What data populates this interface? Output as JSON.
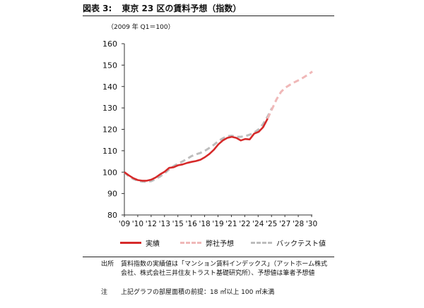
{
  "figure": {
    "number_label": "図表 3:",
    "title_text": "東京 23 区の賃料予想（指数）",
    "unit_text": "（2009 年 Q1＝100）"
  },
  "chart_data": {
    "type": "line",
    "title": "東京 23 区の賃料予想（指数）",
    "ylabel": "（2009 年 Q1＝100）",
    "ylim": [
      80,
      160
    ],
    "yticks": [
      80,
      90,
      100,
      110,
      120,
      130,
      140,
      150,
      160
    ],
    "xlim": [
      2009,
      2030
    ],
    "xticks": [
      "'09",
      "'10",
      "'12",
      "'13",
      "'15",
      "'16",
      "'18",
      "'19",
      "'21",
      "'22",
      "'24",
      "'25",
      "'27",
      "'28",
      "'30"
    ],
    "grid": false,
    "legend_position": "bottom",
    "series": [
      {
        "name": "実績",
        "color": "#d62a2a",
        "style": "solid",
        "points": [
          [
            2009.0,
            100.0
          ],
          [
            2009.5,
            98.5
          ],
          [
            2010.0,
            97.2
          ],
          [
            2010.5,
            96.3
          ],
          [
            2011.0,
            96.0
          ],
          [
            2011.5,
            96.0
          ],
          [
            2012.0,
            96.5
          ],
          [
            2012.5,
            97.5
          ],
          [
            2013.0,
            99.0
          ],
          [
            2013.5,
            100.2
          ],
          [
            2014.0,
            102.0
          ],
          [
            2014.5,
            102.3
          ],
          [
            2015.0,
            103.2
          ],
          [
            2015.5,
            103.6
          ],
          [
            2016.0,
            104.3
          ],
          [
            2016.5,
            104.8
          ],
          [
            2017.0,
            105.2
          ],
          [
            2017.5,
            105.8
          ],
          [
            2018.0,
            107.0
          ],
          [
            2018.5,
            108.5
          ],
          [
            2019.0,
            110.5
          ],
          [
            2019.5,
            113.0
          ],
          [
            2020.0,
            114.8
          ],
          [
            2020.5,
            116.0
          ],
          [
            2021.0,
            116.5
          ],
          [
            2021.5,
            116.0
          ],
          [
            2022.0,
            114.8
          ],
          [
            2022.5,
            115.5
          ],
          [
            2023.0,
            115.3
          ],
          [
            2023.5,
            118.0
          ],
          [
            2024.0,
            118.8
          ],
          [
            2024.5,
            121.0
          ],
          [
            2025.0,
            125.0
          ]
        ]
      },
      {
        "name": "弊社予想",
        "color": "#f0b8b8",
        "style": "dashed",
        "points": [
          [
            2025.0,
            125.0
          ],
          [
            2025.5,
            129.5
          ],
          [
            2026.0,
            134.0
          ],
          [
            2026.5,
            137.5
          ],
          [
            2027.0,
            139.5
          ],
          [
            2027.5,
            140.8
          ],
          [
            2028.0,
            142.0
          ],
          [
            2028.5,
            143.0
          ],
          [
            2029.0,
            144.2
          ],
          [
            2029.5,
            145.5
          ],
          [
            2030.0,
            147.0
          ]
        ]
      },
      {
        "name": "バックテスト値",
        "color": "#bdbdbd",
        "style": "dashed",
        "points": [
          [
            2009.0,
            100.0
          ],
          [
            2009.5,
            98.0
          ],
          [
            2010.0,
            96.8
          ],
          [
            2010.5,
            96.0
          ],
          [
            2011.0,
            95.6
          ],
          [
            2011.5,
            95.5
          ],
          [
            2012.0,
            95.8
          ],
          [
            2012.5,
            96.8
          ],
          [
            2013.0,
            98.0
          ],
          [
            2013.5,
            99.5
          ],
          [
            2014.0,
            101.3
          ],
          [
            2014.5,
            102.8
          ],
          [
            2015.0,
            104.0
          ],
          [
            2015.5,
            105.0
          ],
          [
            2016.0,
            106.2
          ],
          [
            2016.5,
            107.5
          ],
          [
            2017.0,
            108.3
          ],
          [
            2017.5,
            109.0
          ],
          [
            2018.0,
            110.0
          ],
          [
            2018.5,
            111.3
          ],
          [
            2019.0,
            112.8
          ],
          [
            2019.5,
            114.5
          ],
          [
            2020.0,
            115.8
          ],
          [
            2020.5,
            116.8
          ],
          [
            2021.0,
            117.0
          ],
          [
            2021.5,
            116.5
          ],
          [
            2022.0,
            116.5
          ],
          [
            2022.5,
            116.8
          ],
          [
            2023.0,
            117.5
          ],
          [
            2023.5,
            118.5
          ],
          [
            2024.0,
            120.0
          ],
          [
            2024.5,
            122.5
          ],
          [
            2025.0,
            126.0
          ],
          [
            2025.5,
            130.0
          ]
        ]
      }
    ]
  },
  "legend": {
    "actual": "実績",
    "forecast": "弊社予想",
    "backtest": "バックテスト値"
  },
  "notes": {
    "source_head": "出所",
    "source_text": "賃料指数の実績値は「マンション賃料インデックス」（アットホーム株式会社、株式会社三井住友トラスト基礎研究所）、予想値は筆者予想値",
    "note_head": "注",
    "note_text": "上記グラフの部屋面積の前提：18 ㎡以上 100 ㎡未満"
  }
}
